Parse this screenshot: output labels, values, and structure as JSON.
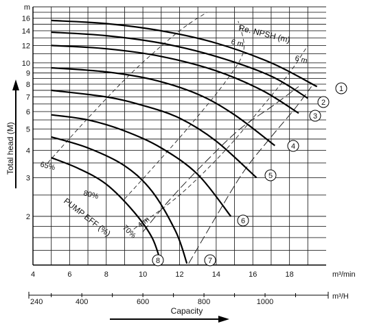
{
  "chart_data": {
    "type": "line",
    "title": "",
    "ylabel": "Total head (M)",
    "xlabel": "Capacity",
    "y_scale": "log",
    "ylim": [
      1.2,
      18
    ],
    "xlim": [
      4,
      20
    ],
    "x_ticks_min": [
      "4",
      "6",
      "8",
      "10",
      "12",
      "14",
      "16",
      "18"
    ],
    "x_unit_min": "m³/min",
    "x_ticks_h": [
      "240",
      "400",
      "600",
      "800",
      "1000"
    ],
    "x_unit_h": "m³/H",
    "y_ticks": [
      "m",
      "16",
      "14",
      "12",
      "10",
      "9",
      "8",
      "7",
      "6",
      "5",
      "4",
      "3",
      "2"
    ],
    "pump_curves": [
      {
        "label": "1",
        "points": [
          [
            5,
            15.6
          ],
          [
            8,
            15.1
          ],
          [
            11,
            14.0
          ],
          [
            14,
            12.3
          ],
          [
            17,
            10.0
          ],
          [
            19.5,
            7.8
          ]
        ]
      },
      {
        "label": "2",
        "points": [
          [
            5,
            13.8
          ],
          [
            8,
            13.3
          ],
          [
            11,
            12.3
          ],
          [
            14,
            10.7
          ],
          [
            17,
            8.7
          ],
          [
            19,
            6.9
          ]
        ]
      },
      {
        "label": "3",
        "points": [
          [
            5,
            12.0
          ],
          [
            8,
            11.6
          ],
          [
            11,
            10.7
          ],
          [
            14,
            9.2
          ],
          [
            16.5,
            7.5
          ],
          [
            18.5,
            5.9
          ]
        ]
      },
      {
        "label": "4",
        "points": [
          [
            5,
            9.5
          ],
          [
            8,
            9.1
          ],
          [
            10.5,
            8.4
          ],
          [
            13,
            7.2
          ],
          [
            15,
            5.8
          ],
          [
            17.2,
            4.2
          ]
        ]
      },
      {
        "label": "5",
        "points": [
          [
            5,
            7.5
          ],
          [
            8,
            7.0
          ],
          [
            10,
            6.4
          ],
          [
            12,
            5.6
          ],
          [
            14,
            4.4
          ],
          [
            16.2,
            3.0
          ]
        ]
      },
      {
        "label": "6",
        "points": [
          [
            5,
            5.8
          ],
          [
            7,
            5.5
          ],
          [
            9,
            4.9
          ],
          [
            11,
            4.1
          ],
          [
            13,
            3.1
          ],
          [
            14.8,
            2.0
          ]
        ]
      },
      {
        "label": "7",
        "points": [
          [
            5,
            4.6
          ],
          [
            7,
            4.1
          ],
          [
            9,
            3.4
          ],
          [
            10.5,
            2.6
          ],
          [
            11.8,
            1.7
          ],
          [
            12.4,
            1.22
          ]
        ]
      },
      {
        "label": "8",
        "points": [
          [
            5,
            3.7
          ],
          [
            6.5,
            3.3
          ],
          [
            8,
            2.8
          ],
          [
            9.5,
            2.1
          ],
          [
            10.5,
            1.6
          ],
          [
            11.0,
            1.22
          ]
        ]
      }
    ],
    "npsh_lines": [
      {
        "label": "4 m",
        "points": [
          [
            10.0,
            1.7
          ],
          [
            11.5,
            2.4
          ],
          [
            13.5,
            3.6
          ],
          [
            15.3,
            5.0
          ],
          [
            17.0,
            6.3
          ],
          [
            18.5,
            7.8
          ]
        ]
      },
      {
        "label": "6 m",
        "points": [
          [
            12.5,
            1.22
          ],
          [
            14.0,
            2.0
          ],
          [
            15.5,
            3.2
          ],
          [
            17.0,
            4.6
          ],
          [
            18.3,
            6.2
          ],
          [
            19.2,
            7.8
          ]
        ]
      }
    ],
    "efficiency_lines": [
      {
        "label": "65%",
        "points": [
          [
            4.8,
            3.5
          ],
          [
            7.0,
            5.6
          ],
          [
            9.5,
            9.2
          ],
          [
            12.0,
            14.0
          ],
          [
            13.5,
            17.0
          ]
        ]
      },
      {
        "label": "80%",
        "points": [
          [
            9.0,
            2.4
          ],
          [
            10.5,
            3.3
          ],
          [
            12.5,
            5.1
          ],
          [
            14.5,
            8.2
          ],
          [
            15.5,
            11.4
          ],
          [
            15.2,
            15.5
          ]
        ]
      },
      {
        "label": "70%",
        "points": [
          [
            9.5,
            1.75
          ],
          [
            12.0,
            2.5
          ],
          [
            14.5,
            4.0
          ],
          [
            16.5,
            6.3
          ],
          [
            18.0,
            9.0
          ],
          [
            19.0,
            12.0
          ]
        ]
      }
    ],
    "annotations": {
      "npsh_header": "Re. NPSH (m)",
      "pump_eff": "PUMP EFF (%)",
      "npsh_6m": "6 m",
      "npsh_6m_b": "6 m",
      "npsh_4m": "4 m",
      "eff_65": "65%",
      "eff_80": "80%",
      "eff_70": "70%"
    }
  }
}
